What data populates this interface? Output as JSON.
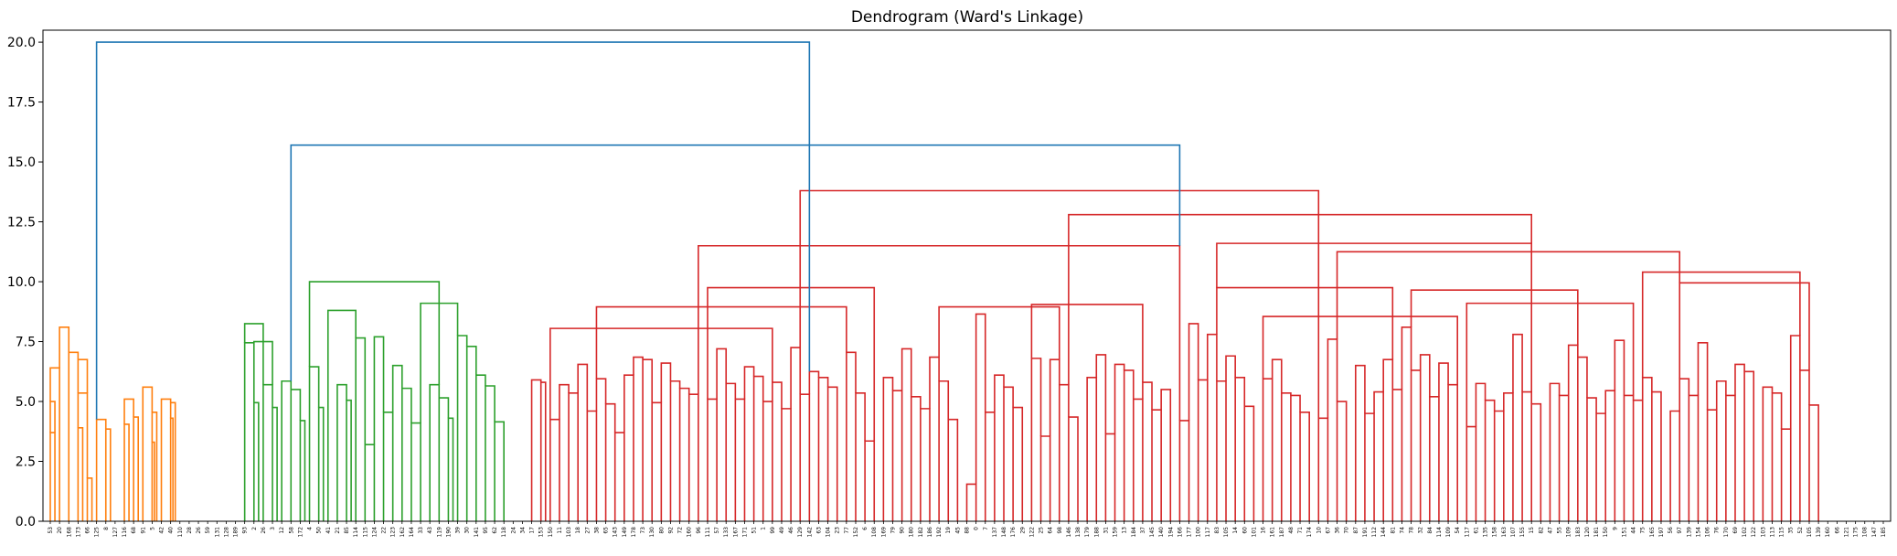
{
  "chart_data": {
    "type": "dendrogram",
    "title": "Dendrogram (Ward's Linkage)",
    "xlabel": "",
    "ylabel": "",
    "ylim": [
      0,
      20.5
    ],
    "yticks": [
      "0.0",
      "2.5",
      "5.0",
      "7.5",
      "10.0",
      "12.5",
      "15.0",
      "17.5",
      "20.0"
    ],
    "grid": false,
    "colors": {
      "C1": "#ff7f0e",
      "C2": "#2ca02c",
      "C3": "#d62728",
      "above": "#1f77b4"
    },
    "leaf_labels": [
      "53",
      "20",
      "168",
      "173",
      "66",
      "125",
      "8",
      "127",
      "116",
      "68",
      "91",
      "5",
      "42",
      "40",
      "110",
      "28",
      "26",
      "59",
      "131",
      "128",
      "189",
      "93",
      "2",
      "26",
      "3",
      "12",
      "58",
      "172",
      "4",
      "50",
      "41",
      "21",
      "85",
      "114",
      "115",
      "124",
      "22",
      "123",
      "162",
      "164",
      "33",
      "43",
      "119",
      "190",
      "39",
      "30",
      "141",
      "95",
      "62",
      "118",
      "24",
      "34",
      "17",
      "153",
      "150",
      "11",
      "103",
      "18",
      "27",
      "38",
      "65",
      "143",
      "149",
      "178",
      "73",
      "130",
      "80",
      "92",
      "72",
      "160",
      "96",
      "111",
      "57",
      "133",
      "167",
      "171",
      "51",
      "1",
      "99",
      "49",
      "46",
      "129",
      "142",
      "63",
      "104",
      "23",
      "77",
      "152",
      "6",
      "108",
      "169",
      "79",
      "90",
      "180",
      "182",
      "186",
      "192",
      "19",
      "45",
      "88",
      "0",
      "7",
      "137",
      "148",
      "176",
      "29",
      "122",
      "25",
      "64",
      "98",
      "146",
      "138",
      "179",
      "188",
      "31",
      "159",
      "13",
      "184",
      "37",
      "145",
      "140",
      "194",
      "166",
      "177",
      "100",
      "117",
      "83",
      "105",
      "14",
      "60",
      "101",
      "16",
      "161",
      "187",
      "48",
      "71",
      "174",
      "10",
      "67",
      "36",
      "70",
      "87",
      "191",
      "112",
      "144",
      "81",
      "74",
      "78",
      "32",
      "84",
      "114",
      "109",
      "54",
      "117",
      "61",
      "135",
      "158",
      "163",
      "107",
      "155",
      "15",
      "82",
      "47",
      "55",
      "109",
      "183",
      "120",
      "181",
      "150",
      "9",
      "151",
      "44",
      "75",
      "165",
      "197",
      "56",
      "97",
      "139",
      "154",
      "106",
      "76",
      "170",
      "69",
      "102",
      "122",
      "103",
      "113",
      "115",
      "35",
      "52",
      "105",
      "139",
      "160",
      "66",
      "121",
      "175",
      "108",
      "147",
      "185"
    ],
    "linkage": [
      [
        0,
        1,
        6.4
      ],
      [
        0,
        0.5,
        5.0
      ],
      [
        0,
        0.5,
        3.7
      ],
      [
        3,
        4,
        5.35
      ],
      [
        3,
        3.5,
        3.9
      ],
      [
        4,
        4.5,
        1.8
      ],
      [
        5,
        6,
        4.25
      ],
      [
        6,
        6.5,
        3.85
      ],
      [
        8,
        9,
        5.1
      ],
      [
        8,
        8.5,
        4.05
      ],
      [
        9,
        9.5,
        4.35
      ],
      [
        10,
        11,
        5.6
      ],
      [
        11,
        11.5,
        4.55
      ],
      [
        11,
        11.25,
        3.3
      ],
      [
        12,
        13,
        5.1
      ],
      [
        13,
        13.5,
        4.95
      ],
      [
        13,
        13.25,
        4.3
      ],
      [
        1,
        2,
        8.1
      ],
      [
        2,
        3,
        7.05
      ],
      [
        3,
        4,
        6.75
      ],
      [
        21,
        22,
        7.45
      ],
      [
        22,
        22.5,
        4.95
      ],
      [
        23,
        24,
        5.7
      ],
      [
        24,
        24.5,
        4.75
      ],
      [
        22,
        24,
        7.5
      ],
      [
        26,
        27,
        5.5
      ],
      [
        27,
        27.5,
        4.2
      ],
      [
        28,
        29,
        6.45
      ],
      [
        29,
        29.5,
        4.75
      ],
      [
        21,
        23,
        8.25
      ],
      [
        25,
        26,
        5.85
      ],
      [
        31,
        32,
        5.7
      ],
      [
        32,
        32.5,
        5.05
      ],
      [
        33,
        34,
        7.65
      ],
      [
        34,
        35,
        3.2
      ],
      [
        35,
        36,
        7.7
      ],
      [
        36,
        37,
        4.55
      ],
      [
        37,
        38,
        6.5
      ],
      [
        38,
        39,
        5.55
      ],
      [
        39,
        40,
        4.1
      ],
      [
        41,
        42,
        5.7
      ],
      [
        42,
        43,
        5.15
      ],
      [
        43,
        43.5,
        4.3
      ],
      [
        44,
        45,
        7.75
      ],
      [
        45,
        46,
        7.3
      ],
      [
        46,
        47,
        6.1
      ],
      [
        47,
        48,
        5.65
      ],
      [
        48,
        49,
        4.15
      ],
      [
        30,
        33,
        8.8
      ],
      [
        40,
        44,
        9.1
      ],
      [
        28,
        42,
        10.0
      ],
      [
        52,
        53,
        5.9
      ],
      [
        53,
        53.5,
        5.8
      ],
      [
        54,
        55,
        4.25
      ],
      [
        55,
        56,
        5.7
      ],
      [
        56,
        57,
        5.35
      ],
      [
        57,
        58,
        6.55
      ],
      [
        58,
        59,
        4.6
      ],
      [
        59,
        60,
        5.95
      ],
      [
        60,
        61,
        4.9
      ],
      [
        61,
        62,
        3.7
      ],
      [
        62,
        63,
        6.1
      ],
      [
        63,
        64,
        6.85
      ],
      [
        64,
        65,
        6.75
      ],
      [
        65,
        66,
        4.95
      ],
      [
        66,
        67,
        6.6
      ],
      [
        67,
        68,
        5.85
      ],
      [
        68,
        69,
        5.55
      ],
      [
        69,
        70,
        5.3
      ],
      [
        71,
        72,
        5.1
      ],
      [
        72,
        73,
        7.2
      ],
      [
        73,
        74,
        5.75
      ],
      [
        74,
        75,
        5.1
      ],
      [
        75,
        76,
        6.45
      ],
      [
        76,
        77,
        6.05
      ],
      [
        77,
        78,
        5.0
      ],
      [
        78,
        79,
        5.8
      ],
      [
        79,
        80,
        4.7
      ],
      [
        80,
        81,
        7.25
      ],
      [
        81,
        82,
        5.3
      ],
      [
        82,
        83,
        6.25
      ],
      [
        83,
        84,
        6.0
      ],
      [
        84,
        85,
        5.6
      ],
      [
        86,
        87,
        7.05
      ],
      [
        87,
        88,
        5.35
      ],
      [
        88,
        89,
        3.35
      ],
      [
        90,
        91,
        6.0
      ],
      [
        91,
        92,
        5.45
      ],
      [
        92,
        93,
        7.2
      ],
      [
        93,
        94,
        5.2
      ],
      [
        94,
        95,
        4.7
      ],
      [
        95,
        96,
        6.85
      ],
      [
        96,
        97,
        5.85
      ],
      [
        97,
        98,
        4.25
      ],
      [
        99,
        100,
        1.55
      ],
      [
        100,
        101,
        8.65
      ],
      [
        101,
        102,
        4.55
      ],
      [
        102,
        103,
        6.1
      ],
      [
        103,
        104,
        5.6
      ],
      [
        104,
        105,
        4.75
      ],
      [
        106,
        107,
        6.8
      ],
      [
        107,
        108,
        3.55
      ],
      [
        108,
        109,
        6.75
      ],
      [
        109,
        110,
        5.7
      ],
      [
        110,
        111,
        4.35
      ],
      [
        112,
        113,
        6.0
      ],
      [
        113,
        114,
        6.95
      ],
      [
        114,
        115,
        3.65
      ],
      [
        115,
        116,
        6.55
      ],
      [
        116,
        117,
        6.3
      ],
      [
        117,
        118,
        5.1
      ],
      [
        118,
        119,
        5.8
      ],
      [
        119,
        120,
        4.65
      ],
      [
        120,
        121,
        5.5
      ],
      [
        122,
        123,
        4.2
      ],
      [
        123,
        124,
        8.25
      ],
      [
        124,
        125,
        5.9
      ],
      [
        125,
        126,
        7.8
      ],
      [
        126,
        127,
        5.85
      ],
      [
        127,
        128,
        6.9
      ],
      [
        128,
        129,
        6.0
      ],
      [
        129,
        130,
        4.8
      ],
      [
        131,
        132,
        5.95
      ],
      [
        132,
        133,
        6.75
      ],
      [
        133,
        134,
        5.35
      ],
      [
        134,
        135,
        5.25
      ],
      [
        135,
        136,
        4.55
      ],
      [
        137,
        138,
        4.3
      ],
      [
        138,
        139,
        7.6
      ],
      [
        139,
        140,
        5.0
      ],
      [
        141,
        142,
        6.5
      ],
      [
        142,
        143,
        4.5
      ],
      [
        143,
        144,
        5.4
      ],
      [
        144,
        145,
        6.75
      ],
      [
        145,
        146,
        5.5
      ],
      [
        146,
        147,
        8.1
      ],
      [
        147,
        148,
        6.3
      ],
      [
        148,
        149,
        6.95
      ],
      [
        149,
        150,
        5.2
      ],
      [
        150,
        151,
        6.6
      ],
      [
        151,
        152,
        5.7
      ],
      [
        153,
        154,
        3.95
      ],
      [
        154,
        155,
        5.75
      ],
      [
        155,
        156,
        5.05
      ],
      [
        156,
        157,
        4.6
      ],
      [
        157,
        158,
        5.35
      ],
      [
        158,
        159,
        7.8
      ],
      [
        159,
        160,
        5.4
      ],
      [
        160,
        161,
        4.9
      ],
      [
        162,
        163,
        5.75
      ],
      [
        163,
        164,
        5.25
      ],
      [
        164,
        165,
        7.35
      ],
      [
        165,
        166,
        6.85
      ],
      [
        166,
        167,
        5.15
      ],
      [
        167,
        168,
        4.5
      ],
      [
        168,
        169,
        5.45
      ],
      [
        169,
        170,
        7.55
      ],
      [
        170,
        171,
        5.25
      ],
      [
        171,
        172,
        5.05
      ],
      [
        172,
        173,
        6.0
      ],
      [
        173,
        174,
        5.4
      ],
      [
        175,
        176,
        4.6
      ],
      [
        176,
        177,
        5.95
      ],
      [
        177,
        178,
        5.25
      ],
      [
        178,
        179,
        7.45
      ],
      [
        179,
        180,
        4.65
      ],
      [
        180,
        181,
        5.85
      ],
      [
        181,
        182,
        5.25
      ],
      [
        182,
        183,
        6.55
      ],
      [
        183,
        184,
        6.25
      ],
      [
        185,
        186,
        5.6
      ],
      [
        186,
        187,
        5.35
      ],
      [
        187,
        188,
        3.85
      ],
      [
        188,
        189,
        7.75
      ],
      [
        189,
        190,
        6.3
      ],
      [
        190,
        191,
        4.85
      ],
      [
        54,
        78,
        8.05
      ],
      [
        59,
        86,
        8.95
      ],
      [
        71,
        89,
        9.75
      ],
      [
        96,
        109,
        8.95
      ],
      [
        106,
        118,
        9.05
      ],
      [
        126,
        145,
        9.75
      ],
      [
        131,
        152,
        8.55
      ],
      [
        147,
        165,
        9.65
      ],
      [
        153,
        171,
        9.1
      ],
      [
        172,
        189,
        10.4
      ],
      [
        176,
        190,
        9.95
      ],
      [
        70,
        122,
        11.5
      ],
      [
        139,
        176,
        11.25
      ],
      [
        126,
        160,
        11.6
      ],
      [
        110,
        160,
        12.8
      ],
      [
        81,
        137,
        13.8
      ],
      [
        26,
        122,
        15.7
      ],
      [
        5,
        82,
        20.0
      ]
    ]
  }
}
